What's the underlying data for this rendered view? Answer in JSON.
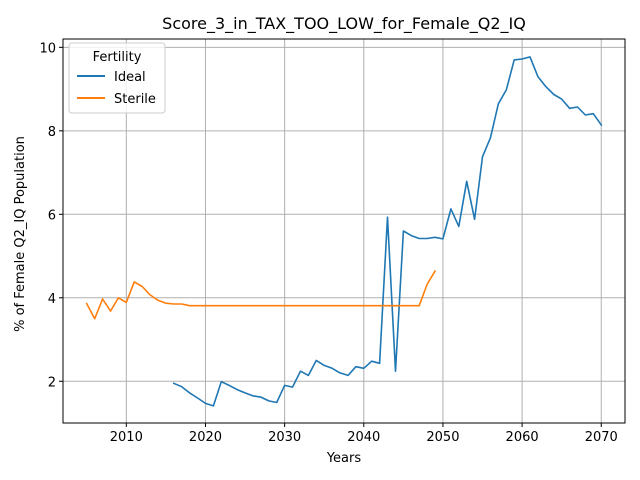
{
  "chart_data": {
    "type": "line",
    "title": "Score_3_in_TAX_TOO_LOW_for_Female_Q2_IQ",
    "xlabel": "Years",
    "ylabel": "% of Female Q2_IQ Population",
    "xlim": [
      2002,
      2073
    ],
    "ylim": [
      1.0,
      10.2
    ],
    "xticks": [
      2010,
      2020,
      2030,
      2040,
      2050,
      2060,
      2070
    ],
    "yticks": [
      2,
      4,
      6,
      8,
      10
    ],
    "grid": true,
    "legend": {
      "title": "Fertility",
      "placement": "top-left"
    },
    "series": [
      {
        "name": "Ideal",
        "color": "#1f77b4",
        "x": [
          2016,
          2017,
          2018,
          2019,
          2020,
          2021,
          2022,
          2023,
          2024,
          2025,
          2026,
          2027,
          2028,
          2029,
          2030,
          2031,
          2032,
          2033,
          2034,
          2035,
          2036,
          2037,
          2038,
          2039,
          2040,
          2041,
          2042,
          2043,
          2044,
          2045,
          2046,
          2047,
          2048,
          2049,
          2050,
          2051,
          2052,
          2053,
          2054,
          2055,
          2056,
          2057,
          2058,
          2059,
          2060,
          2061,
          2062,
          2063,
          2064,
          2065,
          2066,
          2067,
          2068,
          2069,
          2070
        ],
        "y": [
          1.95,
          1.87,
          1.72,
          1.6,
          1.47,
          1.41,
          1.99,
          1.9,
          1.8,
          1.72,
          1.65,
          1.62,
          1.53,
          1.49,
          1.9,
          1.86,
          2.24,
          2.14,
          2.5,
          2.38,
          2.31,
          2.2,
          2.14,
          2.35,
          2.31,
          2.48,
          2.43,
          5.93,
          2.24,
          5.6,
          5.49,
          5.42,
          5.42,
          5.45,
          5.41,
          6.13,
          5.71,
          6.79,
          5.88,
          7.38,
          7.83,
          8.65,
          8.98,
          9.7,
          9.72,
          9.77,
          9.3,
          9.06,
          8.87,
          8.76,
          8.54,
          8.57,
          8.38,
          8.41,
          8.14
        ]
      },
      {
        "name": "Sterile",
        "color": "#ff7f0e",
        "x": [
          2005,
          2006,
          2007,
          2008,
          2009,
          2010,
          2011,
          2012,
          2013,
          2014,
          2015,
          2016,
          2017,
          2018,
          2019,
          2020,
          2021,
          2022,
          2023,
          2024,
          2025,
          2026,
          2027,
          2028,
          2029,
          2030,
          2031,
          2032,
          2033,
          2034,
          2035,
          2036,
          2037,
          2038,
          2039,
          2040,
          2041,
          2042,
          2043,
          2044,
          2045,
          2046,
          2047,
          2048,
          2049
        ],
        "y": [
          3.86,
          3.5,
          3.97,
          3.68,
          4.0,
          3.89,
          4.38,
          4.27,
          4.07,
          3.94,
          3.87,
          3.85,
          3.85,
          3.81,
          3.81,
          3.81,
          3.81,
          3.81,
          3.81,
          3.81,
          3.81,
          3.81,
          3.81,
          3.81,
          3.81,
          3.81,
          3.81,
          3.81,
          3.81,
          3.81,
          3.81,
          3.81,
          3.81,
          3.81,
          3.81,
          3.81,
          3.81,
          3.81,
          3.81,
          3.81,
          3.81,
          3.81,
          3.81,
          4.32,
          4.64
        ]
      }
    ]
  }
}
